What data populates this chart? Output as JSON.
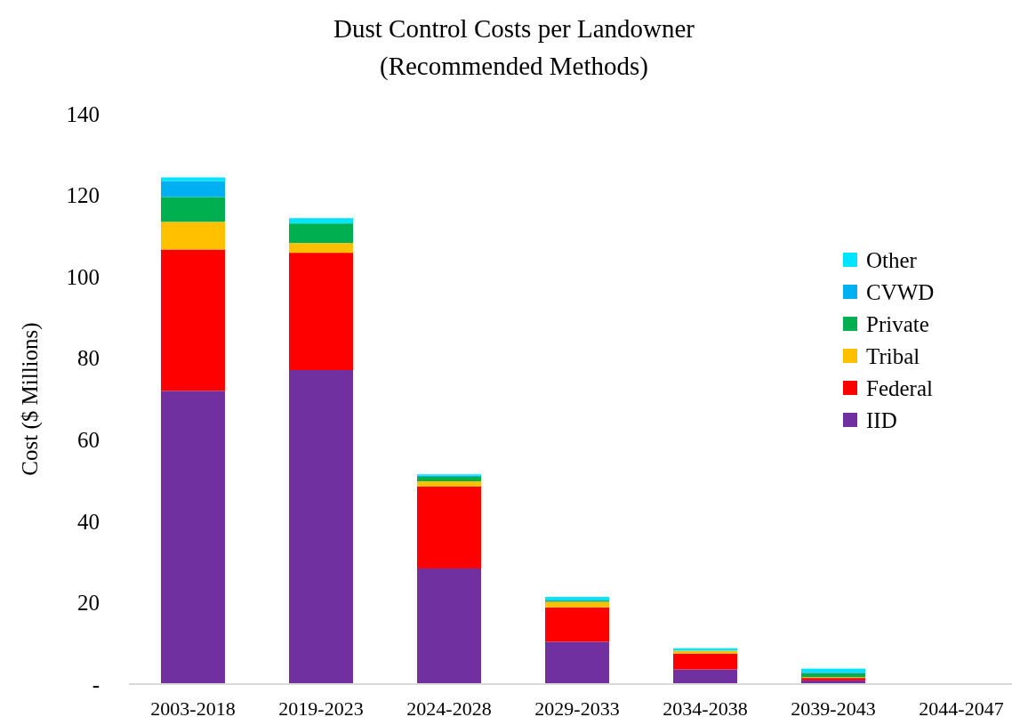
{
  "chart_data": {
    "type": "bar",
    "title": "Dust Control Costs per Landowner",
    "subtitle": "(Recommended Methods)",
    "ylabel": "Cost ($ Millions)",
    "categories": [
      "2003-2018",
      "2019-2023",
      "2024-2028",
      "2029-2033",
      "2034-2038",
      "2039-2043",
      "2044-2047"
    ],
    "stacked": true,
    "legend": "right",
    "grid": false,
    "ylim": [
      0,
      140
    ],
    "yticks": [
      {
        "value": 0,
        "label": "-"
      },
      20,
      40,
      60,
      80,
      100,
      120,
      140
    ],
    "series": [
      {
        "name": "IID",
        "color": "#7030a0",
        "values": [
          72,
          77.1,
          28.4,
          10.4,
          3.6,
          0.9,
          0
        ]
      },
      {
        "name": "Federal",
        "color": "#ff0000",
        "values": [
          34.7,
          28.8,
          20.1,
          8.4,
          3.9,
          0.6,
          0
        ]
      },
      {
        "name": "Tribal",
        "color": "#ffc000",
        "values": [
          6.8,
          2.4,
          1.3,
          1.4,
          0.7,
          0.2,
          0
        ]
      },
      {
        "name": "Private",
        "color": "#00b050",
        "values": [
          6.1,
          4.8,
          1.1,
          0.3,
          0,
          1,
          0
        ]
      },
      {
        "name": "CVWD",
        "color": "#00b0f0",
        "values": [
          3.9,
          0,
          0.3,
          0.2,
          0,
          0.3,
          0
        ]
      },
      {
        "name": "Other",
        "color": "#00e5ff",
        "values": [
          0.9,
          1.3,
          0.3,
          0.7,
          0.6,
          0.8,
          0
        ]
      }
    ]
  }
}
